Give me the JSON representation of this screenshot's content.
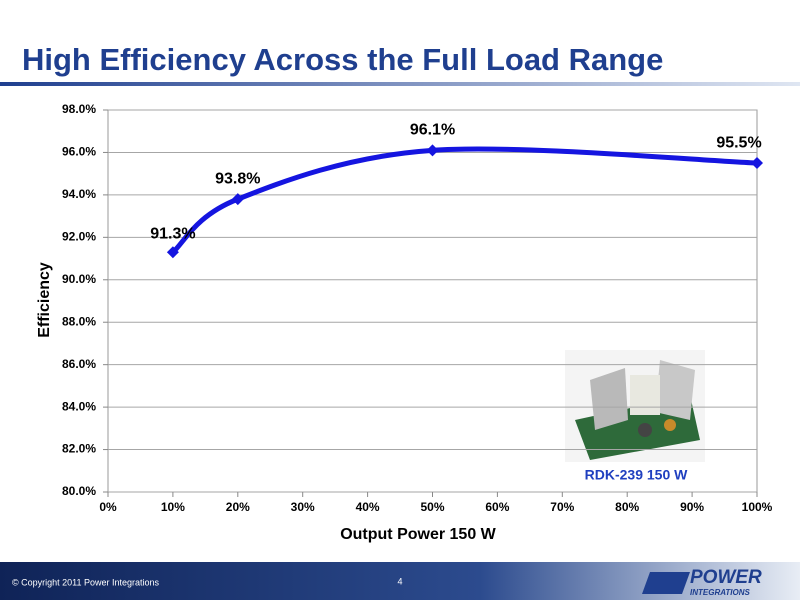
{
  "slide": {
    "title": "High Efficiency Across the Full Load Range",
    "footer": "© Copyright 2011 Power Integrations",
    "page_number": "4",
    "logo_top": "POWER",
    "logo_bottom": "INTEGRATIONS",
    "photo_caption": "RDK-239 150 W"
  },
  "chart_data": {
    "type": "line",
    "x_label": "Output Power 150 W",
    "y_label": "Efficiency",
    "x": [
      10,
      20,
      50,
      100
    ],
    "values": [
      91.3,
      93.8,
      96.1,
      95.5
    ],
    "value_labels": [
      "91.3%",
      "93.8%",
      "96.1%",
      "95.5%"
    ],
    "color": "#1515e0",
    "xlim": [
      0,
      100
    ],
    "xticks": [
      {
        "value": 0,
        "label": "0%"
      },
      {
        "value": 10,
        "label": "10%"
      },
      {
        "value": 20,
        "label": "20%"
      },
      {
        "value": 30,
        "label": "30%"
      },
      {
        "value": 40,
        "label": "40%"
      },
      {
        "value": 50,
        "label": "50%"
      },
      {
        "value": 60,
        "label": "60%"
      },
      {
        "value": 70,
        "label": "70%"
      },
      {
        "value": 80,
        "label": "80%"
      },
      {
        "value": 90,
        "label": "90%"
      },
      {
        "value": 100,
        "label": "100%"
      }
    ],
    "ylim": [
      80,
      98
    ],
    "yticks": [
      {
        "value": 80,
        "label": "80.0%"
      },
      {
        "value": 82,
        "label": "82.0%"
      },
      {
        "value": 84,
        "label": "84.0%"
      },
      {
        "value": 86,
        "label": "86.0%"
      },
      {
        "value": 88,
        "label": "88.0%"
      },
      {
        "value": 90,
        "label": "90.0%"
      },
      {
        "value": 92,
        "label": "92.0%"
      },
      {
        "value": 94,
        "label": "94.0%"
      },
      {
        "value": 96,
        "label": "96.0%"
      },
      {
        "value": 98,
        "label": "98.0%"
      }
    ],
    "grid": true
  }
}
